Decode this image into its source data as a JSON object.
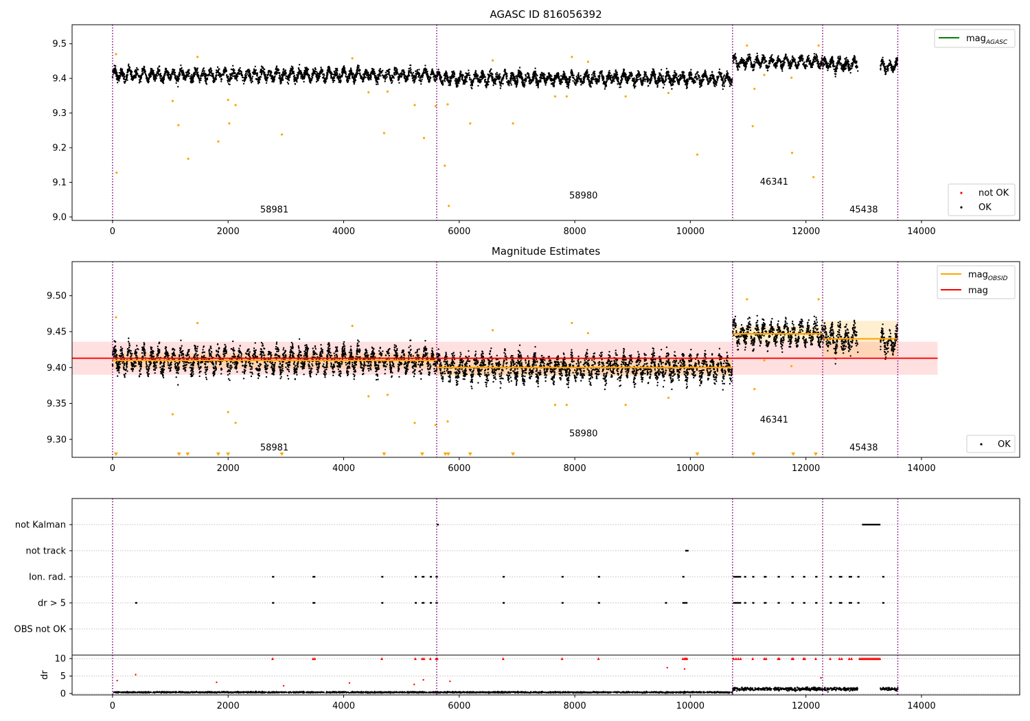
{
  "chart_data": [
    {
      "type": "scatter",
      "title": "AGASC ID 816056392",
      "xlim": [
        -700,
        15700
      ],
      "ylim": [
        8.99,
        9.555
      ],
      "xticks": [
        0,
        2000,
        4000,
        6000,
        8000,
        10000,
        12000,
        14000
      ],
      "yticks": [
        9.0,
        9.1,
        9.2,
        9.3,
        9.4,
        9.5
      ],
      "ytick_labels": [
        "9.0",
        "9.1",
        "9.2",
        "9.3",
        "9.4",
        "9.5"
      ],
      "obs_boundaries": [
        0,
        5610,
        10730,
        12290,
        13590
      ],
      "obsids": [
        {
          "label": "58981",
          "x": 2800,
          "y": 9.013
        },
        {
          "label": "58980",
          "x": 8150,
          "y": 9.053
        },
        {
          "label": "46341",
          "x": 11450,
          "y": 9.093
        },
        {
          "label": "45438",
          "x": 13000,
          "y": 9.013
        }
      ],
      "segments": [
        {
          "x0": 0,
          "x1": 5610,
          "mean": 9.41,
          "std": 0.016
        },
        {
          "x0": 5610,
          "x1": 10730,
          "mean": 9.4,
          "std": 0.017
        },
        {
          "x0": 10730,
          "x1": 12290,
          "mean": 9.447,
          "std": 0.014
        },
        {
          "x0": 12290,
          "x1": 12900,
          "mean": 9.44,
          "std": 0.018
        },
        {
          "x0": 13290,
          "x1": 13590,
          "mean": 9.435,
          "std": 0.016
        }
      ],
      "outliers": [
        [
          60,
          9.47
        ],
        [
          70,
          9.128
        ],
        [
          1040,
          9.335
        ],
        [
          1140,
          9.265
        ],
        [
          1310,
          9.168
        ],
        [
          1470,
          9.462
        ],
        [
          1830,
          9.218
        ],
        [
          2000,
          9.338
        ],
        [
          2020,
          9.27
        ],
        [
          2130,
          9.323
        ],
        [
          2930,
          9.238
        ],
        [
          4150,
          9.458
        ],
        [
          4430,
          9.36
        ],
        [
          4700,
          9.242
        ],
        [
          4760,
          9.362
        ],
        [
          5230,
          9.323
        ],
        [
          5390,
          9.228
        ],
        [
          5590,
          9.32
        ],
        [
          5750,
          9.148
        ],
        [
          5800,
          9.325
        ],
        [
          5820,
          9.032
        ],
        [
          6190,
          9.27
        ],
        [
          6580,
          9.452
        ],
        [
          6930,
          9.27
        ],
        [
          7660,
          9.348
        ],
        [
          7860,
          9.348
        ],
        [
          7950,
          9.462
        ],
        [
          8230,
          9.448
        ],
        [
          8880,
          9.348
        ],
        [
          9620,
          9.358
        ],
        [
          10120,
          9.18
        ],
        [
          10980,
          9.495
        ],
        [
          11080,
          9.262
        ],
        [
          11110,
          9.37
        ],
        [
          11280,
          9.41
        ],
        [
          11750,
          9.402
        ],
        [
          11760,
          9.185
        ],
        [
          12130,
          9.115
        ],
        [
          12220,
          9.495
        ]
      ],
      "legend_upper": [
        {
          "label": "mag",
          "subscript": "AGASC",
          "color": "#008000"
        }
      ],
      "legend_lower": [
        {
          "label": "not OK",
          "color": "#ff0000"
        },
        {
          "label": "OK",
          "color": "#000000"
        }
      ]
    },
    {
      "type": "scatter",
      "title": "Magnitude Estimates",
      "xlim": [
        -700,
        15700
      ],
      "ylim": [
        9.275,
        9.5475
      ],
      "xticks": [
        0,
        2000,
        4000,
        6000,
        8000,
        10000,
        12000,
        14000
      ],
      "yticks": [
        9.3,
        9.35,
        9.4,
        9.45,
        9.5
      ],
      "ytick_labels": [
        "9.30",
        "9.35",
        "9.40",
        "9.45",
        "9.50"
      ],
      "mag": 9.413,
      "mag_band": [
        9.39,
        9.436
      ],
      "mag_xrange": [
        -700,
        14280
      ],
      "obsid_mags": [
        {
          "x0": 0,
          "x1": 5610,
          "mag": 9.41,
          "band": [
            9.398,
            9.42
          ]
        },
        {
          "x0": 5610,
          "x1": 10730,
          "mag": 9.4,
          "band": [
            9.388,
            9.413
          ]
        },
        {
          "x0": 10730,
          "x1": 12290,
          "mag": 9.447,
          "band": [
            9.436,
            9.458
          ]
        },
        {
          "x0": 12290,
          "x1": 13590,
          "mag": 9.44,
          "band": [
            9.415,
            9.465
          ]
        }
      ],
      "obsids": [
        {
          "label": "58981",
          "x": 2800,
          "y": 9.2845
        },
        {
          "label": "58980",
          "x": 8150,
          "y": 9.304
        },
        {
          "label": "46341",
          "x": 11450,
          "y": 9.3235
        },
        {
          "label": "45438",
          "x": 13000,
          "y": 9.2845
        }
      ],
      "low_markers": [
        60,
        1150,
        1300,
        1830,
        2000,
        2930,
        4700,
        5360,
        5760,
        5810,
        6190,
        6930,
        10120,
        11090,
        11780,
        12170
      ],
      "legend_upper": [
        {
          "label": "mag",
          "subscript": "OBSID",
          "color": "#ffa500"
        },
        {
          "label": "mag",
          "subscript": "",
          "color": "#ff0000"
        }
      ],
      "legend_lower": [
        {
          "label": "OK",
          "color": "#000000"
        }
      ]
    },
    {
      "type": "scatter",
      "title": "",
      "xlim": [
        -700,
        15700
      ],
      "flag_rows": [
        "not Kalman",
        "not track",
        "Ion. rad.",
        "dr > 5",
        "OBS not OK"
      ],
      "flags": {
        "not Kalman": [
          [
            5620,
            5620
          ],
          [
            12980,
            13280
          ]
        ],
        "not track": [
          [
            9920,
            9960
          ]
        ],
        "Ion. rad.": [
          [
            2770,
            2770
          ],
          [
            3470,
            3500
          ],
          [
            4660,
            4660
          ],
          [
            5240,
            5240
          ],
          [
            5360,
            5390
          ],
          [
            5500,
            5500
          ],
          [
            5600,
            5620
          ],
          [
            6760,
            6760
          ],
          [
            7780,
            7780
          ],
          [
            8410,
            8410
          ],
          [
            9870,
            9870
          ],
          [
            10750,
            10870
          ],
          [
            10940,
            10940
          ],
          [
            11080,
            11080
          ],
          [
            11280,
            11310
          ],
          [
            11520,
            11540
          ],
          [
            11760,
            11780
          ],
          [
            11960,
            11980
          ],
          [
            12170,
            12190
          ],
          [
            12420,
            12440
          ],
          [
            12580,
            12620
          ],
          [
            12750,
            12790
          ],
          [
            12900,
            12900
          ],
          [
            13330,
            13330
          ]
        ],
        "dr > 5": [
          [
            400,
            400
          ],
          [
            2770,
            2770
          ],
          [
            3470,
            3500
          ],
          [
            4660,
            4660
          ],
          [
            5240,
            5240
          ],
          [
            5360,
            5390
          ],
          [
            5500,
            5500
          ],
          [
            5600,
            5620
          ],
          [
            6760,
            6760
          ],
          [
            7780,
            7780
          ],
          [
            8410,
            8410
          ],
          [
            9570,
            9570
          ],
          [
            9870,
            9940
          ],
          [
            10750,
            10870
          ],
          [
            10940,
            10940
          ],
          [
            11080,
            11080
          ],
          [
            11280,
            11310
          ],
          [
            11520,
            11540
          ],
          [
            11760,
            11780
          ],
          [
            11960,
            11980
          ],
          [
            12170,
            12190
          ],
          [
            12420,
            12440
          ],
          [
            12580,
            12620
          ],
          [
            12750,
            12790
          ],
          [
            12900,
            12900
          ],
          [
            13330,
            13330
          ]
        ],
        "OBS not OK": []
      },
      "dr_ylabel": "dr",
      "dr_ylim": [
        -0.4,
        11
      ],
      "dr_yticks": [
        0,
        5,
        10
      ],
      "dr_ytick_labels": [
        "0",
        "5",
        "10"
      ],
      "dr_xticks": [
        0,
        2000,
        4000,
        6000,
        8000,
        10000,
        12000,
        14000
      ],
      "dr_capped": [
        2770,
        3470,
        3500,
        4660,
        5240,
        5360,
        5390,
        5500,
        5600,
        5620,
        6760,
        7780,
        8410,
        9870,
        9900,
        9920,
        9940,
        10750,
        10790,
        10830,
        10870,
        11080,
        11280,
        11310,
        11520,
        11540,
        11760,
        11780,
        11960,
        11980,
        12170,
        12420,
        12580,
        12620,
        12750,
        12790
      ],
      "dr_capped_ranges": [
        [
          12930,
          13290
        ]
      ],
      "dr_outliers": [
        [
          80,
          3.7
        ],
        [
          400,
          5.4
        ],
        [
          1800,
          3.2
        ],
        [
          2960,
          2.2
        ],
        [
          4100,
          3.0
        ],
        [
          5220,
          2.6
        ],
        [
          5380,
          3.9
        ],
        [
          5840,
          3.5
        ],
        [
          9600,
          7.4
        ],
        [
          9900,
          7.0
        ],
        [
          12260,
          4.5
        ]
      ]
    }
  ]
}
